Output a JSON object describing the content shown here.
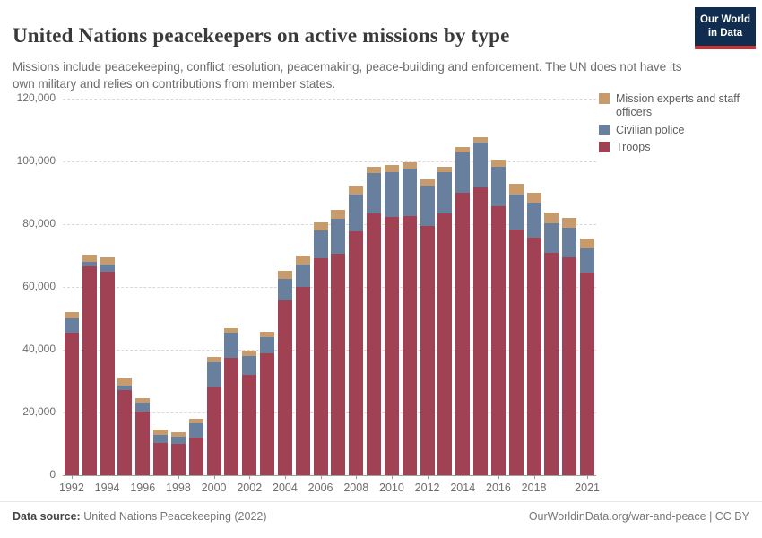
{
  "header": {
    "title": "United Nations peacekeepers on active missions by type",
    "subtitle": "Missions include peacekeeping, conflict resolution, peacemaking, peace-building and enforcement. The UN does not have its own military and relies on contributions from member states.",
    "logo": {
      "line1": "Our World",
      "line2": "in Data",
      "bg_color": "#102D50",
      "stripe_color": "#CB3434"
    }
  },
  "chart_data": {
    "type": "bar",
    "stacked": true,
    "title": "United Nations peacekeepers on active missions by type",
    "xlabel": "",
    "ylabel": "",
    "ylim": [
      0,
      120000
    ],
    "ytick_interval": 20000,
    "ytick_labels": [
      "0",
      "20,000",
      "40,000",
      "60,000",
      "80,000",
      "100,000",
      "120,000"
    ],
    "grid": "horizontal-dashed",
    "legend_position": "right",
    "categories": [
      1992,
      1993,
      1994,
      1995,
      1996,
      1997,
      1998,
      1999,
      2000,
      2001,
      2002,
      2003,
      2004,
      2005,
      2006,
      2007,
      2008,
      2009,
      2010,
      2011,
      2012,
      2013,
      2014,
      2015,
      2016,
      2017,
      2018,
      2019,
      2020,
      2021
    ],
    "xtick_labels": [
      "1992",
      "1994",
      "1996",
      "1998",
      "2000",
      "2002",
      "2004",
      "2006",
      "2008",
      "2010",
      "2012",
      "2014",
      "2016",
      "2018",
      "2021"
    ],
    "series": [
      {
        "name": "Troops",
        "color": "#A04254",
        "values": [
          45400,
          66600,
          64900,
          27100,
          20400,
          10300,
          10000,
          12100,
          28100,
          37300,
          32100,
          39000,
          55700,
          60000,
          69100,
          70600,
          77800,
          83500,
          82400,
          82700,
          79500,
          83500,
          90100,
          91800,
          85800,
          78300,
          75800,
          70900,
          69500,
          64600
        ]
      },
      {
        "name": "Civilian police",
        "color": "#68809E",
        "values": [
          4500,
          1400,
          2300,
          1400,
          2800,
          2600,
          2300,
          4500,
          7800,
          8000,
          6000,
          5000,
          6900,
          7200,
          8900,
          11200,
          11700,
          12900,
          14300,
          14900,
          12900,
          13200,
          12700,
          14100,
          12600,
          11200,
          11100,
          9400,
          9400,
          7700
        ]
      },
      {
        "name": "Mission experts and staff officers",
        "color": "#C89B6C",
        "values": [
          2100,
          2300,
          2200,
          2300,
          1400,
          1700,
          1500,
          1500,
          1700,
          1500,
          1600,
          1700,
          2500,
          2800,
          2600,
          2900,
          2900,
          2000,
          2300,
          2000,
          2000,
          1700,
          1700,
          1700,
          2300,
          3500,
          3200,
          3500,
          3200,
          3200
        ]
      }
    ]
  },
  "footer": {
    "source_label": "Data source:",
    "source_value": " United Nations Peacekeeping (2022)",
    "credit": "OurWorldinData.org/war-and-peace | CC BY"
  }
}
